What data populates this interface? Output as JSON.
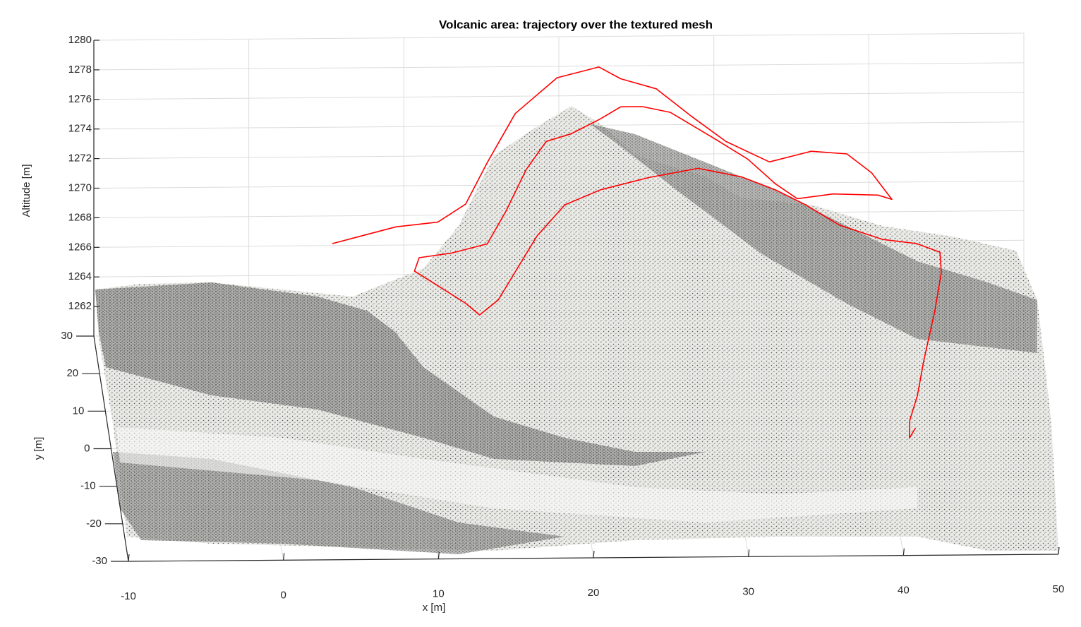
{
  "chart_data": {
    "type": "line3d",
    "title": "Volcanic area: trajectory over the textured mesh",
    "xlabel": "x [m]",
    "ylabel": "y [m]",
    "zlabel": "Altitude [m]",
    "xlim": [
      -10,
      50
    ],
    "xticks": [
      -10,
      0,
      10,
      20,
      30,
      40,
      50
    ],
    "ylim": [
      -30,
      30
    ],
    "yticks": [
      -30,
      -20,
      -10,
      0,
      10,
      20,
      30
    ],
    "zlim": [
      1260,
      1280
    ],
    "zticks": [
      1262,
      1264,
      1266,
      1268,
      1270,
      1272,
      1274,
      1276,
      1278,
      1280
    ],
    "grid": true,
    "series": [
      {
        "name": "trajectory",
        "color": "#ff0000",
        "x": [
          5.2,
          9.3,
          12.0,
          13.8,
          15.2,
          17.0,
          19.7,
          22.4,
          23.8,
          26.1,
          28.4,
          30.6,
          33.4,
          36.1,
          38.4,
          40.0,
          41.3,
          40.4,
          37.5,
          35.2,
          33.8,
          32.0,
          29.7,
          27.0,
          25.2,
          23.8,
          22.5,
          20.6,
          19.0,
          17.7,
          16.4,
          15.2,
          12.9,
          10.8,
          10.5,
          12.0,
          13.8,
          14.7,
          15.9,
          17.0,
          18.4,
          20.2,
          22.5,
          25.6,
          28.8,
          31.6,
          33.8,
          35.7,
          37.9,
          40.7,
          42.9,
          44.4,
          44.3,
          43.7,
          42.8,
          42.2,
          41.6,
          41.5,
          41.9
        ],
        "y": [
          25,
          25,
          25,
          25,
          25,
          25,
          25,
          25,
          25,
          25,
          25,
          25,
          25,
          25,
          25,
          25,
          25,
          25,
          25,
          25,
          25,
          25,
          25,
          25,
          25,
          25,
          25,
          25,
          25,
          25,
          25,
          25,
          25,
          25,
          25,
          25,
          25,
          25,
          25,
          25,
          25,
          25,
          25,
          25,
          25,
          25,
          25,
          25,
          25,
          25,
          25,
          25,
          20,
          15,
          10,
          5,
          2,
          0,
          0
        ],
        "z": [
          1267.4,
          1268.5,
          1268.8,
          1270.0,
          1272.8,
          1276.1,
          1278.5,
          1279.2,
          1278.4,
          1277.7,
          1275.8,
          1274.1,
          1272.7,
          1273.4,
          1273.2,
          1271.9,
          1270.1,
          1270.4,
          1270.5,
          1270.2,
          1271.2,
          1272.9,
          1274.4,
          1276.1,
          1276.5,
          1276.5,
          1275.7,
          1274.7,
          1274.2,
          1272.3,
          1269.5,
          1267.3,
          1266.7,
          1266.4,
          1265.5,
          1264.5,
          1263.3,
          1262.5,
          1263.5,
          1265.4,
          1267.8,
          1269.9,
          1270.9,
          1271.7,
          1272.3,
          1271.7,
          1270.8,
          1269.8,
          1268.4,
          1267.4,
          1267.1,
          1266.5,
          1266.4,
          1265.1,
          1263.0,
          1261.9,
          1261.0,
          1260.3,
          1261.0
        ]
      }
    ]
  }
}
